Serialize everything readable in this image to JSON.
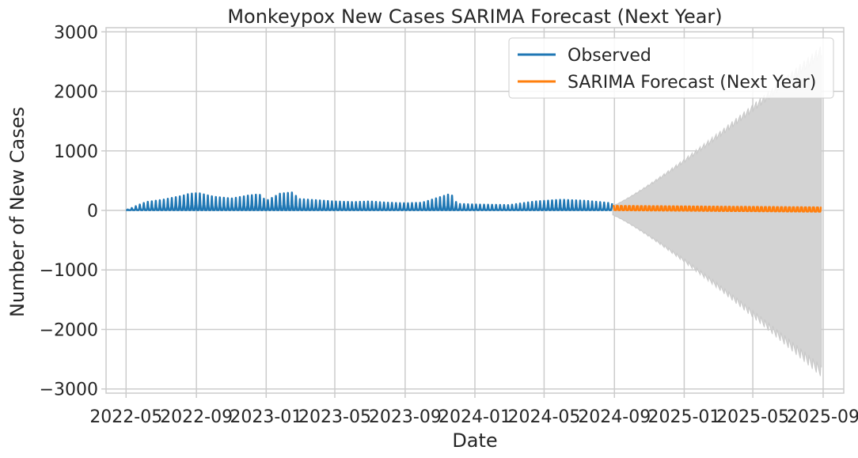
{
  "chart_data": {
    "type": "line",
    "title": "Monkeypox New Cases SARIMA Forecast (Next Year)",
    "xlabel": "Date",
    "ylabel": "Number of New Cases",
    "xlim": [
      "2022-03-27",
      "2025-10-07"
    ],
    "ylim": [
      -3070,
      3070
    ],
    "grid": true,
    "legend_position": "top-right",
    "x_ticks": [
      "2022-05",
      "2022-09",
      "2023-01",
      "2023-05",
      "2023-09",
      "2024-01",
      "2024-05",
      "2024-09",
      "2025-01",
      "2025-05",
      "2025-09"
    ],
    "y_ticks": [
      3000,
      2000,
      1000,
      0,
      -1000,
      -2000,
      -3000
    ],
    "y_tick_labels": [
      "3000",
      "2000",
      "1000",
      "0",
      "−1000",
      "−2000",
      "−3000"
    ],
    "series": [
      {
        "name": "Observed",
        "color": "#1f77b4",
        "range": [
          "2022-05-01",
          "2024-08-28"
        ],
        "baseline": 5,
        "cycle_days": 7,
        "spikes": [
          [
            "2022-05-05",
            15
          ],
          [
            "2022-05-20",
            80
          ],
          [
            "2022-06-05",
            140
          ],
          [
            "2022-06-20",
            160
          ],
          [
            "2022-07-05",
            180
          ],
          [
            "2022-07-20",
            210
          ],
          [
            "2022-08-05",
            240
          ],
          [
            "2022-08-20",
            280
          ],
          [
            "2022-09-05",
            290
          ],
          [
            "2022-10-01",
            230
          ],
          [
            "2022-11-01",
            200
          ],
          [
            "2022-12-01",
            250
          ],
          [
            "2022-12-20",
            270
          ],
          [
            "2023-01-01",
            160
          ],
          [
            "2023-01-25",
            280
          ],
          [
            "2023-02-15",
            300
          ],
          [
            "2023-03-01",
            190
          ],
          [
            "2023-04-01",
            170
          ],
          [
            "2023-05-01",
            150
          ],
          [
            "2023-06-01",
            140
          ],
          [
            "2023-07-01",
            150
          ],
          [
            "2023-08-01",
            130
          ],
          [
            "2023-09-01",
            120
          ],
          [
            "2023-10-01",
            130
          ],
          [
            "2023-11-20",
            280
          ],
          [
            "2023-12-01",
            110
          ],
          [
            "2024-01-01",
            100
          ],
          [
            "2024-03-01",
            90
          ],
          [
            "2024-04-15",
            150
          ],
          [
            "2024-06-01",
            180
          ],
          [
            "2024-07-15",
            160
          ],
          [
            "2024-08-28",
            120
          ]
        ]
      },
      {
        "name": "SARIMA Forecast (Next Year)",
        "color": "#ff7f0e",
        "range": [
          "2024-08-29",
          "2025-08-29"
        ],
        "cycle_days": 7,
        "high": [
          75,
          50
        ],
        "low": [
          5,
          -20
        ]
      }
    ],
    "confidence_band": {
      "color": "#d3d3d3",
      "range": [
        "2024-08-29",
        "2025-08-29"
      ],
      "upper": [
        80,
        2770
      ],
      "lower": [
        -80,
        -2800
      ],
      "cycle_days": 7
    }
  }
}
